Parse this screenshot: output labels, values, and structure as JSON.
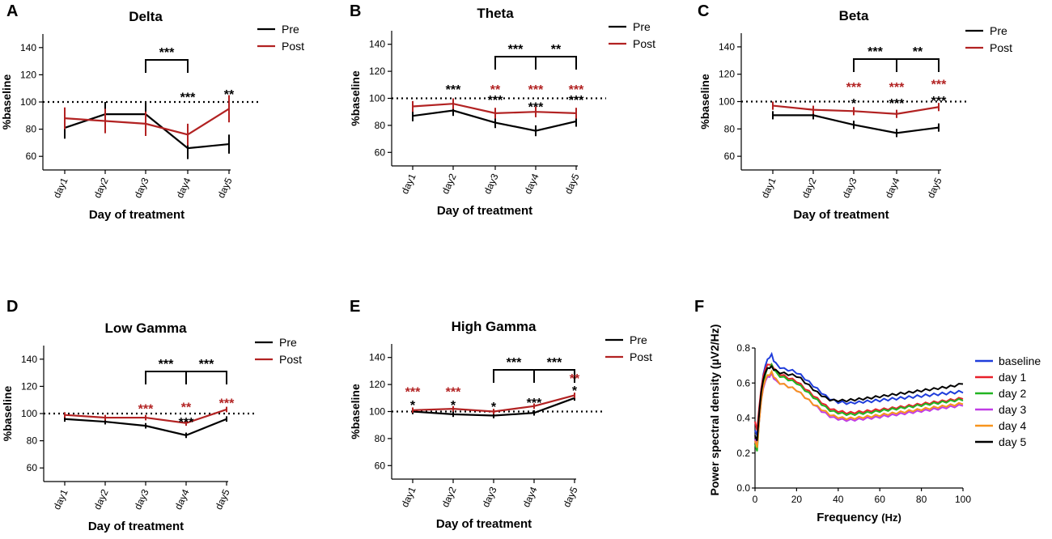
{
  "colors": {
    "pre": "#000000",
    "post": "#b22222",
    "black": "#000000",
    "red": "#b22222"
  },
  "chart_data": [
    {
      "id": "A",
      "panel_label": "A",
      "title": "Delta",
      "type": "line",
      "xlabel": "Day of treatment",
      "ylabel": "%baseline",
      "categories": [
        "day1",
        "day2",
        "day3",
        "day4",
        "day5"
      ],
      "ylim": [
        50,
        150
      ],
      "yticks": [
        "60",
        "80",
        "100",
        "120",
        "140"
      ],
      "reference_line": 100,
      "legend": [
        "Pre",
        "Post"
      ],
      "series": [
        {
          "name": "Pre",
          "values": [
            81,
            91,
            91,
            66,
            69
          ],
          "err": [
            8,
            9,
            9,
            8,
            7
          ]
        },
        {
          "name": "Post",
          "values": [
            88,
            86,
            84,
            76,
            95
          ],
          "err": [
            8,
            9,
            9,
            8,
            10
          ]
        }
      ],
      "brackets": [
        {
          "from": "day3",
          "to": "day4",
          "label": "***"
        }
      ],
      "annotations": [
        {
          "day": "day4",
          "label": "***",
          "color": "black",
          "y": 104
        },
        {
          "day": "day5",
          "label": "**",
          "color": "black",
          "y": 106
        }
      ]
    },
    {
      "id": "B",
      "panel_label": "B",
      "title": "Theta",
      "type": "line",
      "xlabel": "Day of treatment",
      "ylabel": "%baseline",
      "categories": [
        "day1",
        "day2",
        "day3",
        "day4",
        "day5"
      ],
      "ylim": [
        50,
        150
      ],
      "yticks": [
        "60",
        "80",
        "100",
        "120",
        "140"
      ],
      "reference_line": 100,
      "legend": [
        "Pre",
        "Post"
      ],
      "series": [
        {
          "name": "Pre",
          "values": [
            87,
            91,
            82,
            76,
            83
          ],
          "err": [
            4,
            4,
            4,
            4,
            4
          ]
        },
        {
          "name": "Post",
          "values": [
            94,
            96,
            89,
            90,
            89
          ],
          "err": [
            4,
            4,
            4,
            4,
            4
          ]
        }
      ],
      "brackets": [
        {
          "from": "day3",
          "to": "day4",
          "label": "***"
        },
        {
          "from": "day4",
          "to": "day5",
          "label": "**"
        }
      ],
      "annotations": [
        {
          "day": "day2",
          "label": "***",
          "color": "black",
          "y": 107
        },
        {
          "day": "day3",
          "label": "**",
          "color": "red",
          "y": 107
        },
        {
          "day": "day3",
          "label": "***",
          "color": "black",
          "y": 99
        },
        {
          "day": "day4",
          "label": "***",
          "color": "red",
          "y": 107
        },
        {
          "day": "day4",
          "label": "***",
          "color": "black",
          "y": 94
        },
        {
          "day": "day5",
          "label": "***",
          "color": "red",
          "y": 107
        },
        {
          "day": "day5",
          "label": "***",
          "color": "black",
          "y": 99
        }
      ]
    },
    {
      "id": "C",
      "panel_label": "C",
      "title": "Beta",
      "type": "line",
      "xlabel": "Day of treatment",
      "ylabel": "%baseline",
      "categories": [
        "day1",
        "day2",
        "day3",
        "day4",
        "day5"
      ],
      "ylim": [
        50,
        150
      ],
      "yticks": [
        "60",
        "80",
        "100",
        "120",
        "140"
      ],
      "reference_line": 100,
      "legend": [
        "Pre",
        "Post"
      ],
      "series": [
        {
          "name": "Pre",
          "values": [
            90,
            90,
            83,
            77,
            81
          ],
          "err": [
            3,
            3,
            3,
            3,
            3
          ]
        },
        {
          "name": "Post",
          "values": [
            97,
            94,
            93,
            91,
            96
          ],
          "err": [
            3,
            3,
            3,
            3,
            3
          ]
        }
      ],
      "brackets": [
        {
          "from": "day3",
          "to": "day4",
          "label": "***"
        },
        {
          "from": "day4",
          "to": "day5",
          "label": "**"
        }
      ],
      "annotations": [
        {
          "day": "day3",
          "label": "***",
          "color": "red",
          "y": 111
        },
        {
          "day": "day3",
          "label": "*",
          "color": "black",
          "y": 99
        },
        {
          "day": "day4",
          "label": "***",
          "color": "red",
          "y": 111
        },
        {
          "day": "day4",
          "label": "***",
          "color": "black",
          "y": 99
        },
        {
          "day": "day5",
          "label": "***",
          "color": "red",
          "y": 113
        },
        {
          "day": "day5",
          "label": "***",
          "color": "black",
          "y": 101
        }
      ]
    },
    {
      "id": "D",
      "panel_label": "D",
      "title": "Low Gamma",
      "type": "line",
      "xlabel": "Day of treatment",
      "ylabel": "%baseline",
      "categories": [
        "day1",
        "day2",
        "day3",
        "day4",
        "day5"
      ],
      "ylim": [
        50,
        150
      ],
      "yticks": [
        "60",
        "80",
        "100",
        "120",
        "140"
      ],
      "reference_line": 100,
      "legend": [
        "Pre",
        "Post"
      ],
      "series": [
        {
          "name": "Pre",
          "values": [
            96,
            94,
            91,
            84,
            96
          ],
          "err": [
            2,
            2,
            2,
            2,
            2
          ]
        },
        {
          "name": "Post",
          "values": [
            99,
            97,
            97,
            93,
            103
          ],
          "err": [
            2,
            2,
            2,
            2,
            2
          ]
        }
      ],
      "brackets": [
        {
          "from": "day3",
          "to": "day4",
          "label": "***"
        },
        {
          "from": "day4",
          "to": "day5",
          "label": "***"
        }
      ],
      "annotations": [
        {
          "day": "day3",
          "label": "***",
          "color": "red",
          "y": 104
        },
        {
          "day": "day4",
          "label": "**",
          "color": "red",
          "y": 105
        },
        {
          "day": "day4",
          "label": "***",
          "color": "black",
          "y": 94
        },
        {
          "day": "day5",
          "label": "***",
          "color": "red",
          "y": 108
        }
      ]
    },
    {
      "id": "E",
      "panel_label": "E",
      "title": "High Gamma",
      "type": "line",
      "xlabel": "Day of treatment",
      "ylabel": "%baseline",
      "categories": [
        "day1",
        "day2",
        "day3",
        "day4",
        "day5"
      ],
      "ylim": [
        50,
        150
      ],
      "yticks": [
        "60",
        "80",
        "100",
        "120",
        "140"
      ],
      "reference_line": 100,
      "legend": [
        "Pre",
        "Post"
      ],
      "series": [
        {
          "name": "Pre",
          "values": [
            100,
            98,
            97,
            99,
            110
          ],
          "err": [
            2,
            2,
            2,
            2,
            2
          ]
        },
        {
          "name": "Post",
          "values": [
            101,
            102,
            100,
            104,
            112
          ],
          "err": [
            2,
            2,
            2,
            2,
            2
          ]
        }
      ],
      "brackets": [
        {
          "from": "day3",
          "to": "day4",
          "label": "***"
        },
        {
          "from": "day4",
          "to": "day5",
          "label": "***"
        }
      ],
      "annotations": [
        {
          "day": "day1",
          "label": "***",
          "color": "red",
          "y": 115
        },
        {
          "day": "day1",
          "label": "*",
          "color": "black",
          "y": 105
        },
        {
          "day": "day2",
          "label": "***",
          "color": "red",
          "y": 115
        },
        {
          "day": "day2",
          "label": "*",
          "color": "black",
          "y": 105
        },
        {
          "day": "day3",
          "label": "*",
          "color": "black",
          "y": 104
        },
        {
          "day": "day4",
          "label": "***",
          "color": "black",
          "y": 107
        },
        {
          "day": "day5",
          "label": "**",
          "color": "red",
          "y": 125
        },
        {
          "day": "day5",
          "label": "*",
          "color": "black",
          "y": 116
        }
      ]
    },
    {
      "id": "F",
      "panel_label": "F",
      "type": "line",
      "xlabel": "Frequency",
      "xlabel_unit": "(Hz)",
      "ylabel": "Power spectral density (µV2/Hz)",
      "xlim": [
        0,
        100
      ],
      "ylim": [
        0,
        0.8
      ],
      "xticks": [
        "0",
        "20",
        "40",
        "60",
        "80",
        "100"
      ],
      "yticks": [
        "0.0",
        "0.2",
        "0.4",
        "0.6",
        "0.8"
      ],
      "x": [
        0,
        1,
        2,
        3,
        4,
        5,
        6,
        7,
        8,
        9,
        10,
        12,
        14,
        16,
        18,
        20,
        22,
        24,
        26,
        28,
        30,
        32,
        34,
        36,
        38,
        40,
        42,
        44,
        46,
        48,
        50,
        52,
        54,
        56,
        58,
        60,
        62,
        64,
        66,
        68,
        70,
        72,
        74,
        76,
        78,
        80,
        82,
        84,
        86,
        88,
        90,
        92,
        94,
        96,
        98,
        100
      ],
      "series": [
        {
          "name": "baseline",
          "color": "#1f3ddb",
          "values": [
            0.33,
            0.3,
            0.44,
            0.56,
            0.65,
            0.7,
            0.73,
            0.75,
            0.76,
            0.73,
            0.71,
            0.69,
            0.68,
            0.675,
            0.67,
            0.66,
            0.645,
            0.625,
            0.605,
            0.585,
            0.565,
            0.545,
            0.525,
            0.51,
            0.5,
            0.49,
            0.49,
            0.485,
            0.485,
            0.488,
            0.49,
            0.492,
            0.495,
            0.495,
            0.5,
            0.5,
            0.505,
            0.505,
            0.51,
            0.51,
            0.515,
            0.515,
            0.52,
            0.52,
            0.525,
            0.525,
            0.53,
            0.53,
            0.535,
            0.535,
            0.54,
            0.54,
            0.545,
            0.545,
            0.55,
            0.55
          ]
        },
        {
          "name": "day 1",
          "color": "#e8202a",
          "values": [
            0.38,
            0.33,
            0.46,
            0.57,
            0.64,
            0.68,
            0.7,
            0.71,
            0.7,
            0.69,
            0.67,
            0.65,
            0.64,
            0.63,
            0.62,
            0.61,
            0.59,
            0.57,
            0.55,
            0.53,
            0.51,
            0.49,
            0.47,
            0.455,
            0.445,
            0.44,
            0.435,
            0.43,
            0.43,
            0.432,
            0.435,
            0.437,
            0.44,
            0.443,
            0.445,
            0.448,
            0.45,
            0.453,
            0.456,
            0.46,
            0.463,
            0.466,
            0.47,
            0.473,
            0.476,
            0.48,
            0.483,
            0.486,
            0.49,
            0.493,
            0.496,
            0.5,
            0.503,
            0.506,
            0.51,
            0.515
          ]
        },
        {
          "name": "day 2",
          "color": "#22b522",
          "values": [
            0.25,
            0.21,
            0.38,
            0.52,
            0.6,
            0.65,
            0.68,
            0.69,
            0.7,
            0.68,
            0.66,
            0.64,
            0.63,
            0.62,
            0.61,
            0.6,
            0.58,
            0.56,
            0.54,
            0.52,
            0.5,
            0.48,
            0.46,
            0.445,
            0.435,
            0.43,
            0.425,
            0.422,
            0.42,
            0.422,
            0.425,
            0.428,
            0.43,
            0.433,
            0.436,
            0.44,
            0.443,
            0.446,
            0.45,
            0.453,
            0.456,
            0.46,
            0.463,
            0.466,
            0.47,
            0.473,
            0.476,
            0.48,
            0.483,
            0.486,
            0.49,
            0.493,
            0.496,
            0.5,
            0.503,
            0.505
          ]
        },
        {
          "name": "day 3",
          "color": "#c03ce6",
          "values": [
            0.28,
            0.24,
            0.38,
            0.5,
            0.57,
            0.61,
            0.63,
            0.64,
            0.65,
            0.63,
            0.61,
            0.6,
            0.59,
            0.58,
            0.57,
            0.56,
            0.54,
            0.52,
            0.5,
            0.48,
            0.46,
            0.44,
            0.425,
            0.41,
            0.4,
            0.395,
            0.39,
            0.388,
            0.388,
            0.39,
            0.392,
            0.395,
            0.398,
            0.4,
            0.403,
            0.406,
            0.41,
            0.413,
            0.416,
            0.42,
            0.423,
            0.426,
            0.43,
            0.433,
            0.436,
            0.44,
            0.443,
            0.446,
            0.45,
            0.453,
            0.456,
            0.46,
            0.463,
            0.466,
            0.47,
            0.475
          ]
        },
        {
          "name": "day 4",
          "color": "#f7941d",
          "values": [
            0.27,
            0.23,
            0.38,
            0.5,
            0.58,
            0.62,
            0.64,
            0.65,
            0.66,
            0.64,
            0.62,
            0.6,
            0.59,
            0.58,
            0.57,
            0.56,
            0.54,
            0.52,
            0.5,
            0.48,
            0.465,
            0.45,
            0.435,
            0.42,
            0.41,
            0.405,
            0.4,
            0.398,
            0.398,
            0.4,
            0.402,
            0.405,
            0.408,
            0.41,
            0.413,
            0.416,
            0.42,
            0.423,
            0.426,
            0.43,
            0.433,
            0.436,
            0.44,
            0.443,
            0.446,
            0.45,
            0.453,
            0.456,
            0.46,
            0.463,
            0.466,
            0.47,
            0.473,
            0.476,
            0.48,
            0.485
          ]
        },
        {
          "name": "day 5",
          "color": "#000000",
          "values": [
            0.3,
            0.27,
            0.43,
            0.55,
            0.62,
            0.66,
            0.68,
            0.69,
            0.69,
            0.68,
            0.67,
            0.66,
            0.655,
            0.65,
            0.645,
            0.64,
            0.625,
            0.605,
            0.585,
            0.565,
            0.545,
            0.53,
            0.515,
            0.505,
            0.5,
            0.5,
            0.5,
            0.5,
            0.503,
            0.505,
            0.508,
            0.51,
            0.513,
            0.516,
            0.52,
            0.523,
            0.526,
            0.53,
            0.533,
            0.536,
            0.54,
            0.543,
            0.546,
            0.55,
            0.553,
            0.556,
            0.56,
            0.563,
            0.566,
            0.57,
            0.573,
            0.576,
            0.58,
            0.585,
            0.59,
            0.6
          ]
        }
      ]
    }
  ]
}
